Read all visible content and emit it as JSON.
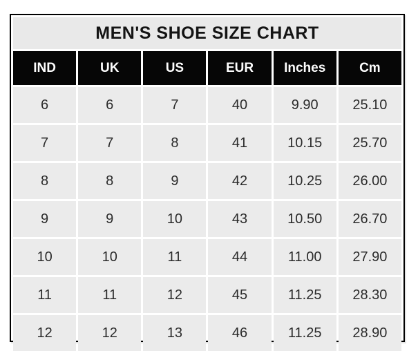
{
  "title": "MEN'S SHOE SIZE CHART",
  "colors": {
    "outer_border": "#000000",
    "title_bg": "#e9e9e9",
    "header_bg": "#060606",
    "header_text": "#fdfdfd",
    "cell_bg": "#ebebeb",
    "cell_text": "#2b2b2b",
    "gridline": "#ffffff",
    "page_bg": "#ffffff"
  },
  "table": {
    "columns": [
      "IND",
      "UK",
      "US",
      "EUR",
      "Inches",
      "Cm"
    ],
    "rows": [
      [
        "6",
        "6",
        "7",
        "40",
        "9.90",
        "25.10"
      ],
      [
        "7",
        "7",
        "8",
        "41",
        "10.15",
        "25.70"
      ],
      [
        "8",
        "8",
        "9",
        "42",
        "10.25",
        "26.00"
      ],
      [
        "9",
        "9",
        "10",
        "43",
        "10.50",
        "26.70"
      ],
      [
        "10",
        "10",
        "11",
        "44",
        "11.00",
        "27.90"
      ],
      [
        "11",
        "11",
        "12",
        "45",
        "11.25",
        "28.30"
      ],
      [
        "12",
        "12",
        "13",
        "46",
        "11.25",
        "28.90"
      ]
    ]
  },
  "chart_data": {
    "type": "table",
    "title": "MEN'S SHOE SIZE CHART",
    "columns": [
      "IND",
      "UK",
      "US",
      "EUR",
      "Inches",
      "Cm"
    ],
    "rows": [
      [
        6,
        6,
        7,
        40,
        9.9,
        25.1
      ],
      [
        7,
        7,
        8,
        41,
        10.15,
        25.7
      ],
      [
        8,
        8,
        9,
        42,
        10.25,
        26.0
      ],
      [
        9,
        9,
        10,
        43,
        10.5,
        26.7
      ],
      [
        10,
        10,
        11,
        44,
        11.0,
        27.9
      ],
      [
        11,
        11,
        12,
        45,
        11.25,
        28.3
      ],
      [
        12,
        12,
        13,
        46,
        11.25,
        28.9
      ]
    ]
  }
}
